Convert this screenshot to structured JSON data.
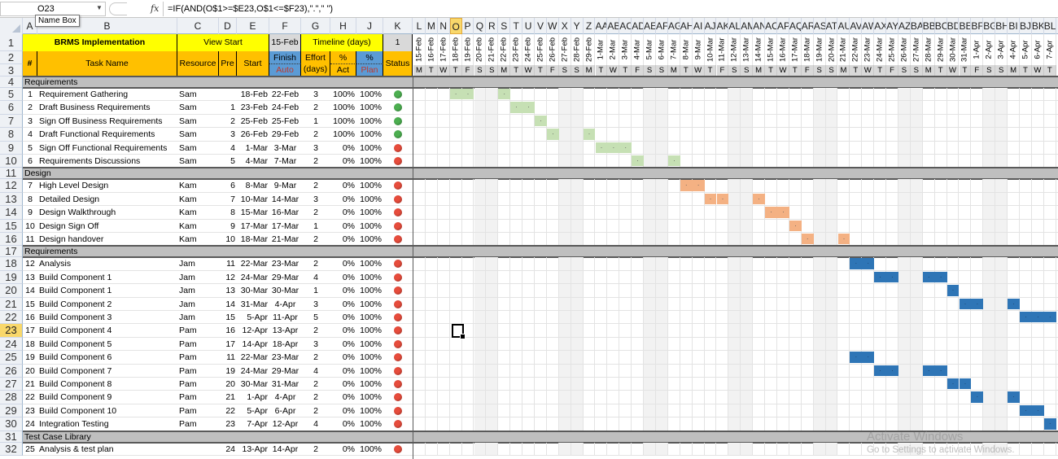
{
  "formula_bar": {
    "name_box": "O23",
    "name_box_tooltip": "Name Box",
    "fx_label": "fx",
    "formula": "=IF(AND(O$1>=$E23,O$1<=$F23),\".\",\" \")"
  },
  "columns": [
    "A",
    "B",
    "C",
    "D",
    "E",
    "F",
    "G",
    "H",
    "J",
    "K"
  ],
  "gantt_columns": [
    "L",
    "M",
    "N",
    "O",
    "P",
    "Q",
    "R",
    "S",
    "T",
    "U",
    "V",
    "W",
    "X",
    "Y",
    "Z",
    "AA",
    "AB",
    "AC",
    "AD",
    "AE",
    "AF",
    "AG",
    "AH",
    "AI",
    "AJ",
    "AK",
    "AL",
    "AM",
    "AN",
    "AO",
    "AP",
    "AQ",
    "AR",
    "AS",
    "AT",
    "AU",
    "AV",
    "AW",
    "AX",
    "AY",
    "AZ",
    "BA",
    "BB",
    "BC",
    "BD",
    "BE",
    "BF",
    "BG",
    "BH",
    "BI",
    "BJ",
    "BK",
    "BL"
  ],
  "selected_column": "O",
  "selected_row": "23",
  "header": {
    "project_title": "BRMS Implementation",
    "view_start_label": "View Start",
    "view_start_value": "15-Feb",
    "timeline_label": "Timeline (days)",
    "timeline_value": "1",
    "col_num": "#",
    "col_task": "Task Name",
    "col_resource": "Resource",
    "col_pre": "Pre",
    "col_start": "Start",
    "col_finish": "Finish",
    "col_finish_sub": "Auto",
    "col_effort": "Effort (days)",
    "col_pct": "%",
    "col_act": "Act",
    "col_pct2": "%",
    "col_plan": "Plan",
    "col_status": "Status"
  },
  "timeline": {
    "dates": [
      "15-Feb",
      "16-Feb",
      "17-Feb",
      "18-Feb",
      "19-Feb",
      "20-Feb",
      "21-Feb",
      "22-Feb",
      "23-Feb",
      "24-Feb",
      "25-Feb",
      "26-Feb",
      "27-Feb",
      "28-Feb",
      "29-Feb",
      "1-Mar",
      "2-Mar",
      "3-Mar",
      "4-Mar",
      "5-Mar",
      "6-Mar",
      "7-Mar",
      "8-Mar",
      "9-Mar",
      "10-Mar",
      "11-Mar",
      "12-Mar",
      "13-Mar",
      "14-Mar",
      "15-Mar",
      "16-Mar",
      "17-Mar",
      "18-Mar",
      "19-Mar",
      "20-Mar",
      "21-Mar",
      "22-Mar",
      "23-Mar",
      "24-Mar",
      "25-Mar",
      "26-Mar",
      "27-Mar",
      "28-Mar",
      "29-Mar",
      "30-Mar",
      "31-Mar",
      "1-Apr",
      "2-Apr",
      "3-Apr",
      "4-Apr",
      "5-Apr",
      "6-Apr",
      "7-Apr"
    ],
    "weekdays": [
      "M",
      "T",
      "W",
      "T",
      "F",
      "S",
      "S",
      "M",
      "T",
      "W",
      "T",
      "F",
      "S",
      "S",
      "M",
      "T",
      "W",
      "T",
      "F",
      "S",
      "S",
      "M",
      "T",
      "W",
      "T",
      "F",
      "S",
      "S",
      "M",
      "T",
      "W",
      "T",
      "F",
      "S",
      "S",
      "M",
      "T",
      "W",
      "T",
      "F",
      "S",
      "S",
      "M",
      "T",
      "W",
      "T",
      "F",
      "S",
      "S",
      "M",
      "T",
      "W",
      "T"
    ]
  },
  "colors": {
    "phase_requirements": "#c6e0b4",
    "phase_design": "#f4b183",
    "phase_build": "#2e75b6",
    "status_done": "#4caf50",
    "status_late": "#e74c3c"
  },
  "rows": [
    {
      "row": "4",
      "section": "Requirements"
    },
    {
      "row": "5",
      "num": "1",
      "task": "Requirement Gathering",
      "resource": "Sam",
      "pre": "",
      "start": "18-Feb",
      "finish": "22-Feb",
      "effort": "3",
      "act": "100%",
      "plan": "100%",
      "status": "done",
      "phase": "phase_requirements"
    },
    {
      "row": "6",
      "num": "2",
      "task": "Draft Business Requirements",
      "resource": "Sam",
      "pre": "1",
      "start": "23-Feb",
      "finish": "24-Feb",
      "effort": "2",
      "act": "100%",
      "plan": "100%",
      "status": "done",
      "phase": "phase_requirements"
    },
    {
      "row": "7",
      "num": "3",
      "task": "Sign Off Business Requirements",
      "resource": "Sam",
      "pre": "2",
      "start": "25-Feb",
      "finish": "25-Feb",
      "effort": "1",
      "act": "100%",
      "plan": "100%",
      "status": "done",
      "phase": "phase_requirements"
    },
    {
      "row": "8",
      "num": "4",
      "task": "Draft Functional Requirements",
      "resource": "Sam",
      "pre": "3",
      "start": "26-Feb",
      "finish": "29-Feb",
      "effort": "2",
      "act": "100%",
      "plan": "100%",
      "status": "done",
      "phase": "phase_requirements"
    },
    {
      "row": "9",
      "num": "5",
      "task": "Sign Off Functional Requirements",
      "resource": "Sam",
      "pre": "4",
      "start": "1-Mar",
      "finish": "3-Mar",
      "effort": "3",
      "act": "0%",
      "plan": "100%",
      "status": "late",
      "phase": "phase_requirements"
    },
    {
      "row": "10",
      "num": "6",
      "task": "Requirements Discussions",
      "resource": "Sam",
      "pre": "5",
      "start": "4-Mar",
      "finish": "7-Mar",
      "effort": "2",
      "act": "0%",
      "plan": "100%",
      "status": "late",
      "phase": "phase_requirements"
    },
    {
      "row": "11",
      "section": "Design"
    },
    {
      "row": "12",
      "num": "7",
      "task": "High Level Design",
      "resource": "Kam",
      "pre": "6",
      "start": "8-Mar",
      "finish": "9-Mar",
      "effort": "2",
      "act": "0%",
      "plan": "100%",
      "status": "late",
      "phase": "phase_design"
    },
    {
      "row": "13",
      "num": "8",
      "task": "Detailed Design",
      "resource": "Kam",
      "pre": "7",
      "start": "10-Mar",
      "finish": "14-Mar",
      "effort": "3",
      "act": "0%",
      "plan": "100%",
      "status": "late",
      "phase": "phase_design"
    },
    {
      "row": "14",
      "num": "9",
      "task": "Design Walkthrough",
      "resource": "Kam",
      "pre": "8",
      "start": "15-Mar",
      "finish": "16-Mar",
      "effort": "2",
      "act": "0%",
      "plan": "100%",
      "status": "late",
      "phase": "phase_design"
    },
    {
      "row": "15",
      "num": "10",
      "task": "Design Sign Off",
      "resource": "Kam",
      "pre": "9",
      "start": "17-Mar",
      "finish": "17-Mar",
      "effort": "1",
      "act": "0%",
      "plan": "100%",
      "status": "late",
      "phase": "phase_design"
    },
    {
      "row": "16",
      "num": "11",
      "task": "Design handover",
      "resource": "Kam",
      "pre": "10",
      "start": "18-Mar",
      "finish": "21-Mar",
      "effort": "2",
      "act": "0%",
      "plan": "100%",
      "status": "late",
      "phase": "phase_design"
    },
    {
      "row": "17",
      "section": "Requirements"
    },
    {
      "row": "18",
      "num": "12",
      "task": "Analysis",
      "resource": "Jam",
      "pre": "11",
      "start": "22-Mar",
      "finish": "23-Mar",
      "effort": "2",
      "act": "0%",
      "plan": "100%",
      "status": "late",
      "phase": "phase_build"
    },
    {
      "row": "19",
      "num": "13",
      "task": "Build Component 1",
      "resource": "Jam",
      "pre": "12",
      "start": "24-Mar",
      "finish": "29-Mar",
      "effort": "4",
      "act": "0%",
      "plan": "100%",
      "status": "late",
      "phase": "phase_build"
    },
    {
      "row": "20",
      "num": "14",
      "task": "Build Component 1",
      "resource": "Jam",
      "pre": "13",
      "start": "30-Mar",
      "finish": "30-Mar",
      "effort": "1",
      "act": "0%",
      "plan": "100%",
      "status": "late",
      "phase": "phase_build"
    },
    {
      "row": "21",
      "num": "15",
      "task": "Build Component 2",
      "resource": "Jam",
      "pre": "14",
      "start": "31-Mar",
      "finish": "4-Apr",
      "effort": "3",
      "act": "0%",
      "plan": "100%",
      "status": "late",
      "phase": "phase_build"
    },
    {
      "row": "22",
      "num": "16",
      "task": "Build Component 3",
      "resource": "Jam",
      "pre": "15",
      "start": "5-Apr",
      "finish": "11-Apr",
      "effort": "5",
      "act": "0%",
      "plan": "100%",
      "status": "late",
      "phase": "phase_build"
    },
    {
      "row": "23",
      "num": "17",
      "task": "Build Component 4",
      "resource": "Pam",
      "pre": "16",
      "start": "12-Apr",
      "finish": "13-Apr",
      "effort": "2",
      "act": "0%",
      "plan": "100%",
      "status": "late",
      "phase": "phase_build"
    },
    {
      "row": "24",
      "num": "18",
      "task": "Build Component 5",
      "resource": "Pam",
      "pre": "17",
      "start": "14-Apr",
      "finish": "18-Apr",
      "effort": "3",
      "act": "0%",
      "plan": "100%",
      "status": "late",
      "phase": "phase_build"
    },
    {
      "row": "25",
      "num": "19",
      "task": "Build Component 6",
      "resource": "Pam",
      "pre": "11",
      "start": "22-Mar",
      "finish": "23-Mar",
      "effort": "2",
      "act": "0%",
      "plan": "100%",
      "status": "late",
      "phase": "phase_build"
    },
    {
      "row": "26",
      "num": "20",
      "task": "Build Component 7",
      "resource": "Pam",
      "pre": "19",
      "start": "24-Mar",
      "finish": "29-Mar",
      "effort": "4",
      "act": "0%",
      "plan": "100%",
      "status": "late",
      "phase": "phase_build"
    },
    {
      "row": "27",
      "num": "21",
      "task": "Build Component 8",
      "resource": "Pam",
      "pre": "20",
      "start": "30-Mar",
      "finish": "31-Mar",
      "effort": "2",
      "act": "0%",
      "plan": "100%",
      "status": "late",
      "phase": "phase_build"
    },
    {
      "row": "28",
      "num": "22",
      "task": "Build Component 9",
      "resource": "Pam",
      "pre": "21",
      "start": "1-Apr",
      "finish": "4-Apr",
      "effort": "2",
      "act": "0%",
      "plan": "100%",
      "status": "late",
      "phase": "phase_build"
    },
    {
      "row": "29",
      "num": "23",
      "task": "Build Component 10",
      "resource": "Pam",
      "pre": "22",
      "start": "5-Apr",
      "finish": "6-Apr",
      "effort": "2",
      "act": "0%",
      "plan": "100%",
      "status": "late",
      "phase": "phase_build"
    },
    {
      "row": "30",
      "num": "24",
      "task": "Integration Testing",
      "resource": "Pam",
      "pre": "23",
      "start": "7-Apr",
      "finish": "12-Apr",
      "effort": "4",
      "act": "0%",
      "plan": "100%",
      "status": "late",
      "phase": "phase_build"
    },
    {
      "row": "31",
      "section": "Test Case Library"
    },
    {
      "row": "32",
      "num": "25",
      "task": "Analysis & test plan",
      "resource": "",
      "pre": "24",
      "start": "13-Apr",
      "finish": "14-Apr",
      "effort": "2",
      "act": "0%",
      "plan": "100%",
      "status": "late",
      "phase": "phase_build"
    }
  ],
  "watermark": {
    "title": "Activate Windows",
    "subtitle": "Go to Settings to activate Windows."
  }
}
